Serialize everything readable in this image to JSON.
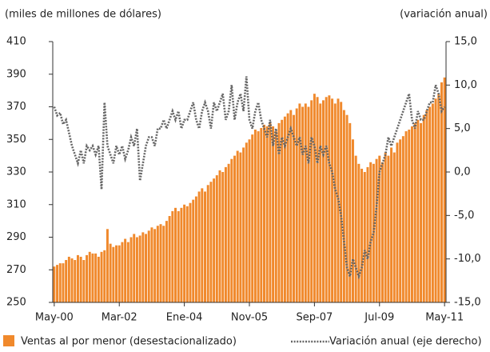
{
  "chart_data": {
    "type": "bar-line",
    "y_label": "(miles de millones de dólares)",
    "y2_label": "(variación anual)",
    "categories": [
      "May-00",
      null,
      null,
      null,
      null,
      null,
      null,
      null,
      null,
      null,
      null,
      null,
      null,
      null,
      null,
      null,
      null,
      null,
      null,
      null,
      null,
      null,
      "Mar-02",
      null,
      null,
      null,
      null,
      null,
      null,
      null,
      null,
      null,
      null,
      null,
      null,
      null,
      null,
      null,
      null,
      null,
      null,
      null,
      null,
      null,
      "Ene-04",
      null,
      null,
      null,
      null,
      null,
      null,
      null,
      null,
      null,
      null,
      null,
      null,
      null,
      null,
      null,
      null,
      null,
      null,
      null,
      null,
      null,
      "Nov-05",
      null,
      null,
      null,
      null,
      null,
      null,
      null,
      null,
      null,
      null,
      null,
      null,
      null,
      null,
      null,
      null,
      null,
      null,
      null,
      null,
      null,
      "Sep-07",
      null,
      null,
      null,
      null,
      null,
      null,
      null,
      null,
      null,
      null,
      null,
      null,
      null,
      null,
      null,
      null,
      null,
      null,
      null,
      null,
      null,
      "Jul-09",
      null,
      null,
      null,
      null,
      null,
      null,
      null,
      null,
      null,
      null,
      null,
      null,
      null,
      null,
      null,
      null,
      null,
      null,
      null,
      null,
      null,
      "May-11"
    ],
    "series": [
      {
        "name": "Ventas al por menor (desestacionalizado)",
        "kind": "bar",
        "color": "#f0892c",
        "values": [
          272,
          273,
          274,
          274,
          276,
          278,
          277,
          276,
          279,
          278,
          276,
          279,
          281,
          280,
          280,
          278,
          281,
          282,
          295,
          286,
          284,
          285,
          285,
          287,
          289,
          287,
          290,
          292,
          290,
          291,
          293,
          292,
          294,
          296,
          295,
          297,
          298,
          297,
          300,
          303,
          306,
          308,
          306,
          308,
          310,
          309,
          311,
          313,
          315,
          318,
          320,
          318,
          322,
          324,
          326,
          328,
          331,
          330,
          333,
          335,
          338,
          340,
          343,
          342,
          345,
          348,
          350,
          353,
          356,
          355,
          357,
          359,
          358,
          360,
          358,
          355,
          360,
          362,
          364,
          366,
          368,
          365,
          369,
          372,
          370,
          372,
          370,
          374,
          378,
          376,
          372,
          374,
          376,
          377,
          375,
          372,
          375,
          373,
          368,
          365,
          360,
          350,
          340,
          335,
          332,
          330,
          333,
          336,
          335,
          338,
          340,
          336,
          342,
          340,
          345,
          342,
          348,
          350,
          352,
          355,
          356,
          358,
          360,
          362,
          360,
          365,
          368,
          370,
          372,
          375,
          378,
          385,
          388
        ]
      },
      {
        "name": "Variación anual (eje derecho)",
        "kind": "line",
        "axis": "y2",
        "color": "#666666",
        "values": [
          7.5,
          6.5,
          6.8,
          5.5,
          6,
          4.5,
          3,
          2,
          1,
          2.5,
          1,
          3,
          2.5,
          3,
          2,
          3,
          -2,
          8,
          3,
          2,
          1,
          3,
          2,
          3,
          1.5,
          2.5,
          4,
          3,
          5,
          -1,
          1,
          3,
          4,
          4,
          3,
          5,
          5,
          6,
          5,
          6,
          7,
          6,
          7,
          5,
          6,
          6,
          7,
          8,
          6,
          5,
          7,
          8,
          7,
          5,
          8,
          7,
          8,
          9,
          6,
          7,
          10,
          6,
          8,
          9,
          7,
          11,
          6,
          5,
          7,
          8,
          6,
          5,
          4,
          6,
          3,
          5,
          2,
          4,
          3,
          4,
          5,
          4,
          3,
          4,
          2,
          3,
          1,
          4,
          3,
          1,
          3,
          2,
          3,
          1,
          0,
          -2,
          -3,
          -5,
          -8,
          -11,
          -12,
          -10,
          -11,
          -12,
          -11,
          -9,
          -10,
          -8,
          -7,
          -4,
          0,
          1,
          2,
          4,
          3,
          4,
          5,
          6,
          7,
          8,
          9,
          6,
          5,
          7,
          6,
          6,
          7,
          8,
          8,
          10,
          9,
          7,
          7.5
        ]
      }
    ],
    "ylim": [
      250,
      410
    ],
    "yticks": [
      250,
      270,
      290,
      310,
      330,
      350,
      370,
      390,
      410
    ],
    "y2lim": [
      -15,
      15
    ],
    "y2ticks": [
      {
        "value": -15,
        "label": "-15,0"
      },
      {
        "value": -10,
        "label": "-10,0"
      },
      {
        "value": -5,
        "label": "-5,0"
      },
      {
        "value": 0,
        "label": "0,0"
      },
      {
        "value": 5,
        "label": "5,0"
      },
      {
        "value": 10,
        "label": "10,0"
      },
      {
        "value": 15,
        "label": "15,0"
      }
    ]
  }
}
